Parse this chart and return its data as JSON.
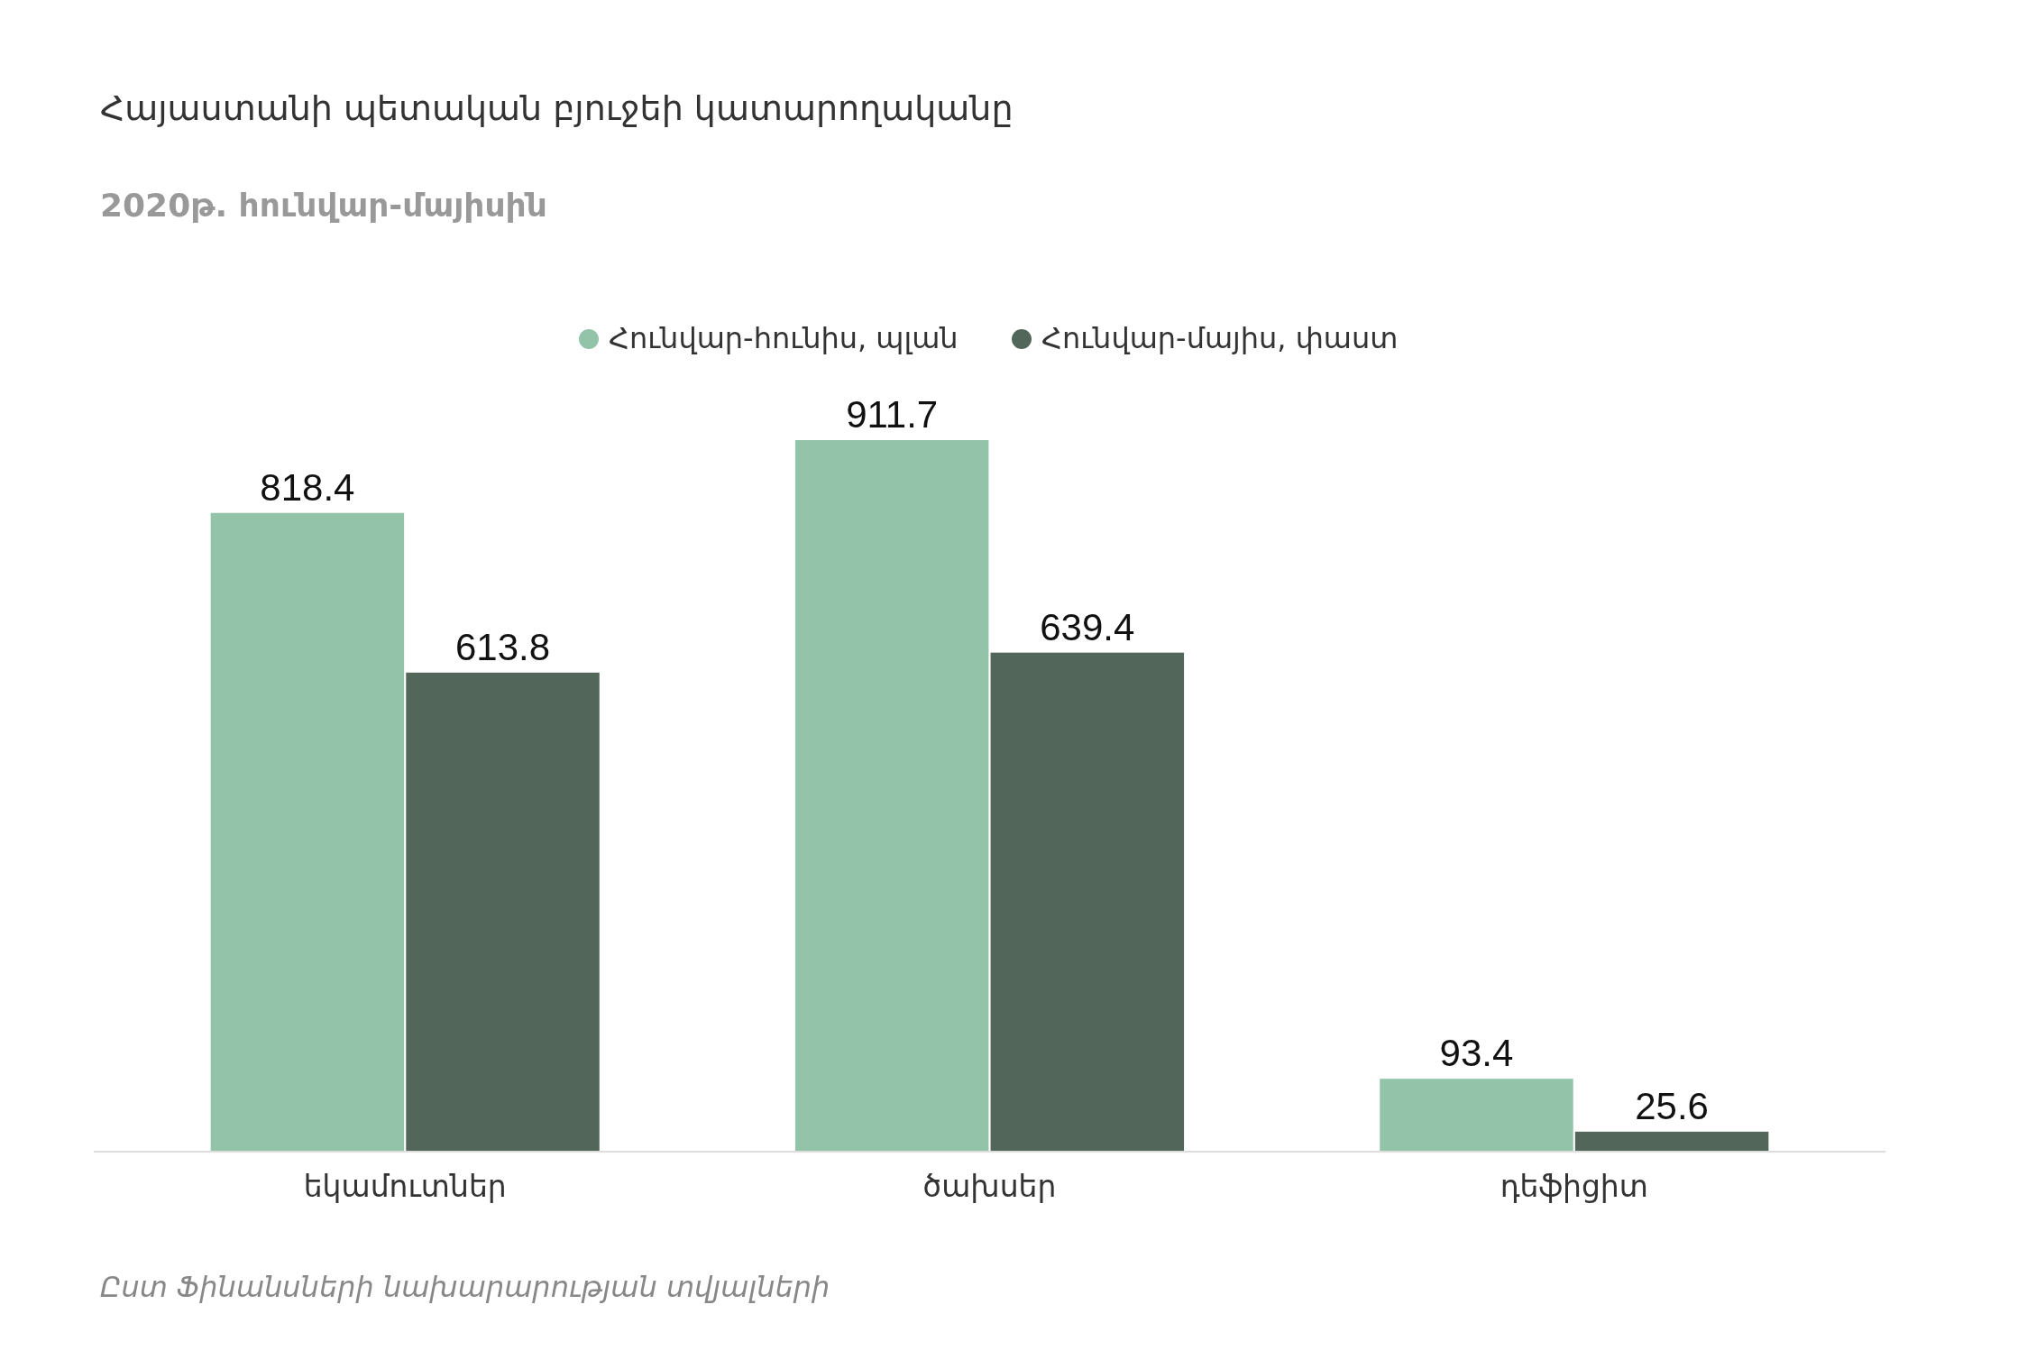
{
  "chart_data": {
    "type": "bar",
    "title": "Հայաստանի պետական բյուջեի կատարողականը",
    "subtitle": "2020թ. հունվար-մայիսին",
    "categories": [
      "եկամուտներ",
      "ծախսեր",
      "դեֆիցիտ"
    ],
    "series": [
      {
        "name": "Հունվար-հունիս, պլան",
        "color": "#93c4aa",
        "values": [
          818.4,
          911.7,
          93.4
        ]
      },
      {
        "name": "Հունվար-մայիս, փաստ",
        "color": "#53665a",
        "values": [
          613.8,
          639.4,
          25.6
        ]
      }
    ],
    "data_labels": true,
    "legend": "top",
    "annotations": [
      "Ըստ Ֆինանսների նախարարության տվյալների"
    ]
  }
}
